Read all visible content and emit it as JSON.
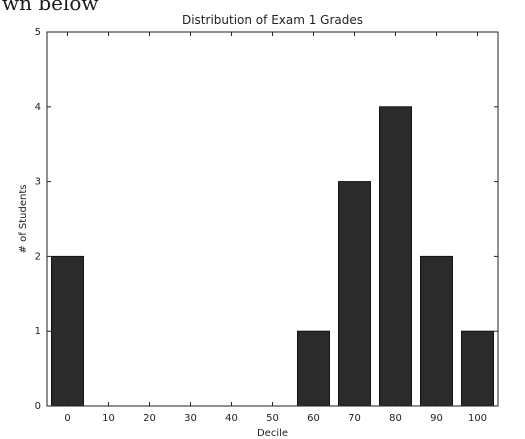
{
  "page": {
    "fragment_text": "wn below"
  },
  "chart_data": {
    "type": "bar",
    "title": "Distribution of Exam 1 Grades",
    "xlabel": "Decile",
    "ylabel": "# of Students",
    "categories": [
      "0",
      "10",
      "20",
      "30",
      "40",
      "50",
      "60",
      "70",
      "80",
      "90",
      "100"
    ],
    "values": [
      2,
      0,
      0,
      0,
      0,
      0,
      1,
      3,
      4,
      2,
      1
    ],
    "ylim": [
      0,
      5
    ],
    "yticks": [
      "0",
      "1",
      "2",
      "3",
      "4",
      "5"
    ],
    "grid": false,
    "legend": "none",
    "bar_color": "#2b2b2b",
    "bar_edge_color": "#111111"
  }
}
